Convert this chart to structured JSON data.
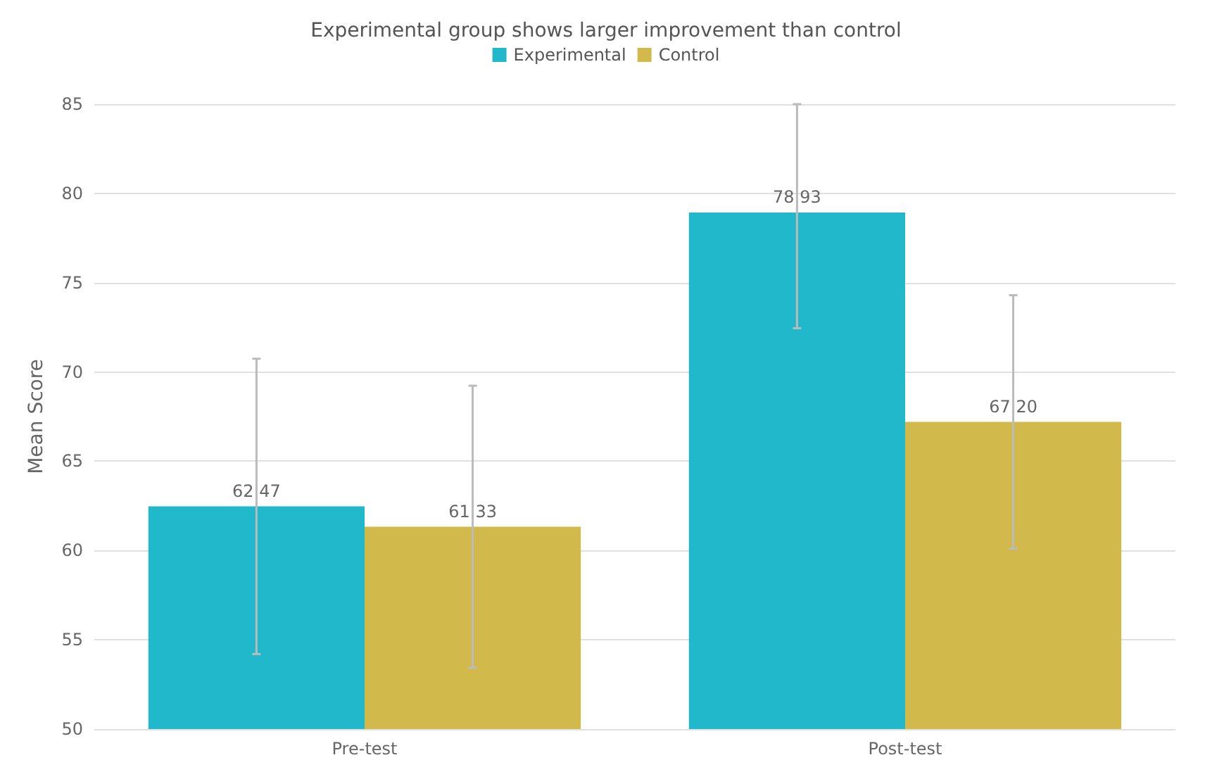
{
  "chart_data": {
    "type": "bar",
    "title": "Experimental group shows larger improvement than control",
    "ylabel": "Mean Score",
    "categories": [
      "Pre-test",
      "Post-test"
    ],
    "series": [
      {
        "name": "Experimental",
        "color": "#22b8cc",
        "values": [
          62.47,
          78.93
        ],
        "value_labels": [
          "62.47",
          "78.93"
        ],
        "errors": [
          8.27,
          [
            72.45,
            85
          ]
        ]
      },
      {
        "name": "Control",
        "color": "#d1b94c",
        "values": [
          61.33,
          67.2
        ],
        "value_labels": [
          "61.33",
          "67.20"
        ],
        "errors": [
          7.9,
          7.1
        ]
      }
    ],
    "ylim": [
      50,
      85
    ],
    "yticks": [
      50,
      55,
      60,
      65,
      70,
      75,
      80,
      85
    ],
    "grid": "y",
    "legend": "top"
  }
}
